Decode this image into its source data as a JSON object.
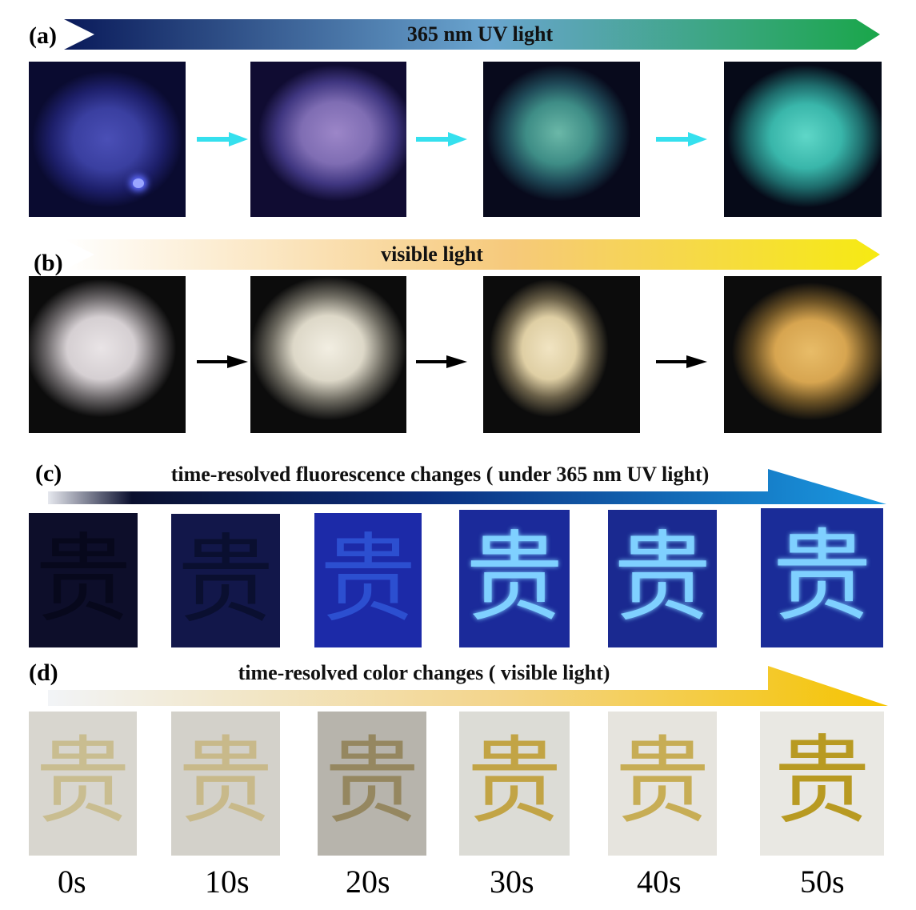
{
  "panels": {
    "a": {
      "label": "(a)",
      "banner_text": "365 nm UV light",
      "banner_colors": [
        "#0a1a5a",
        "#6aa5cf",
        "#1aa64a"
      ],
      "arrow_color": "#35e0ee"
    },
    "b": {
      "label": "(b)",
      "banner_text": "visible light",
      "banner_colors": [
        "#ffffff",
        "#f6c97a",
        "#f6ea12"
      ],
      "arrow_color": "#000000"
    },
    "c": {
      "label": "(c)",
      "banner_text": "time-resolved fluorescence changes ( under 365 nm UV light)",
      "banner_colors": [
        "#e6e8ee",
        "#0a0f2e",
        "#0b2f80",
        "#1a9be3"
      ],
      "glyph": "贵",
      "glyph_colors": [
        "#07081c",
        "#0a0f30",
        "#2c4fd0",
        "#7fd0ff",
        "#7fd0ff",
        "#7fd0ff"
      ]
    },
    "d": {
      "label": "(d)",
      "banner_text": "time-resolved color changes ( visible light)",
      "banner_colors": [
        "#f2f4f7",
        "#f3d488",
        "#f5c400"
      ],
      "glyph": "贵",
      "glyph_colors": [
        "#c9bd90",
        "#c8b98a",
        "#958760",
        "#c2a445",
        "#c7ad55",
        "#b89a22"
      ]
    }
  },
  "time_labels": [
    "0s",
    "10s",
    "20s",
    "30s",
    "40s",
    "50s"
  ]
}
